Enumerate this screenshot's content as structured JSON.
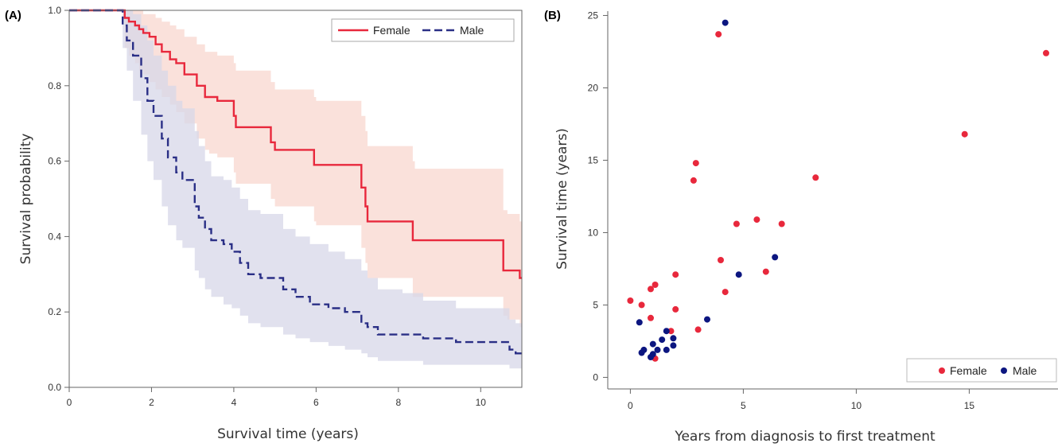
{
  "panelA": {
    "label": "(A)",
    "chart_data": {
      "type": "line",
      "xlabel": "Survival time (years)",
      "ylabel": "Survival probability",
      "xlim": [
        0,
        11
      ],
      "ylim": [
        0,
        1
      ],
      "xticks": [
        0,
        2,
        4,
        6,
        8,
        10
      ],
      "yticks": [
        0.0,
        0.2,
        0.4,
        0.6,
        0.8,
        1.0
      ],
      "ytick_labels": [
        "0.0",
        "0.2",
        "0.4",
        "0.6",
        "0.8",
        "1.0"
      ],
      "legend_position": "top-right",
      "series": [
        {
          "name": "Female",
          "color": "#e8283c",
          "band_color": "#f8d7cf",
          "line_style": "solid",
          "x": [
            0,
            1.35,
            1.45,
            1.6,
            1.7,
            1.8,
            1.95,
            2.1,
            2.25,
            2.45,
            2.6,
            2.8,
            3.1,
            3.3,
            3.4,
            3.6,
            4.0,
            4.05,
            4.9,
            5.0,
            5.95,
            6.0,
            7.1,
            7.2,
            7.25,
            7.4,
            8.35,
            8.4,
            10.55,
            10.65,
            10.95
          ],
          "y": [
            1.0,
            0.98,
            0.97,
            0.96,
            0.95,
            0.94,
            0.93,
            0.91,
            0.89,
            0.87,
            0.86,
            0.83,
            0.8,
            0.77,
            0.77,
            0.76,
            0.72,
            0.69,
            0.65,
            0.63,
            0.59,
            0.59,
            0.53,
            0.48,
            0.44,
            0.44,
            0.39,
            0.39,
            0.31,
            0.31,
            0.29
          ],
          "upper": [
            1.0,
            1.0,
            1.0,
            1.0,
            1.0,
            0.99,
            0.99,
            0.98,
            0.97,
            0.96,
            0.95,
            0.93,
            0.91,
            0.89,
            0.89,
            0.88,
            0.86,
            0.84,
            0.81,
            0.79,
            0.77,
            0.76,
            0.72,
            0.68,
            0.64,
            0.64,
            0.6,
            0.58,
            0.47,
            0.46,
            0.44
          ],
          "lower": [
            1.0,
            0.9,
            0.88,
            0.86,
            0.84,
            0.83,
            0.81,
            0.79,
            0.77,
            0.75,
            0.73,
            0.7,
            0.66,
            0.63,
            0.62,
            0.61,
            0.57,
            0.54,
            0.5,
            0.48,
            0.44,
            0.43,
            0.37,
            0.33,
            0.29,
            0.29,
            0.24,
            0.24,
            0.19,
            0.18,
            0.16
          ]
        },
        {
          "name": "Male",
          "color": "#2a2f86",
          "band_color": "#d7d7e8",
          "line_style": "dashed",
          "x": [
            0,
            1.3,
            1.4,
            1.55,
            1.75,
            1.9,
            2.05,
            2.25,
            2.4,
            2.6,
            2.75,
            3.05,
            3.15,
            3.3,
            3.45,
            3.75,
            3.95,
            4.15,
            4.35,
            4.65,
            5.2,
            5.5,
            5.85,
            6.3,
            6.7,
            7.1,
            7.25,
            7.5,
            8.1,
            8.6,
            9.4,
            10.7,
            10.85
          ],
          "y": [
            1.0,
            0.96,
            0.92,
            0.88,
            0.82,
            0.76,
            0.72,
            0.66,
            0.61,
            0.57,
            0.55,
            0.48,
            0.45,
            0.42,
            0.39,
            0.38,
            0.36,
            0.33,
            0.3,
            0.29,
            0.26,
            0.24,
            0.22,
            0.21,
            0.2,
            0.17,
            0.16,
            0.14,
            0.14,
            0.13,
            0.12,
            0.1,
            0.09
          ],
          "upper": [
            1.0,
            1.0,
            1.0,
            0.99,
            0.96,
            0.92,
            0.88,
            0.84,
            0.8,
            0.76,
            0.74,
            0.68,
            0.64,
            0.6,
            0.56,
            0.55,
            0.53,
            0.5,
            0.47,
            0.46,
            0.42,
            0.4,
            0.38,
            0.36,
            0.34,
            0.31,
            0.29,
            0.26,
            0.25,
            0.23,
            0.21,
            0.18,
            0.17
          ],
          "lower": [
            1.0,
            0.9,
            0.84,
            0.76,
            0.67,
            0.6,
            0.55,
            0.48,
            0.43,
            0.39,
            0.37,
            0.31,
            0.29,
            0.26,
            0.24,
            0.22,
            0.21,
            0.19,
            0.17,
            0.16,
            0.14,
            0.13,
            0.12,
            0.11,
            0.1,
            0.09,
            0.08,
            0.07,
            0.07,
            0.06,
            0.06,
            0.05,
            0.05
          ]
        }
      ]
    }
  },
  "panelB": {
    "label": "(B)",
    "chart_data": {
      "type": "scatter",
      "xlabel": "Years from diagnosis to first treatment",
      "ylabel": "Survival time (years)",
      "xlim": [
        -1,
        19
      ],
      "ylim": [
        -0.8,
        25.3
      ],
      "xticks": [
        0,
        5,
        10,
        15
      ],
      "yticks": [
        0,
        5,
        10,
        15,
        20,
        25
      ],
      "legend_position": "bottom-right",
      "series": [
        {
          "name": "Female",
          "color": "#e8283c",
          "points": [
            [
              0,
              5.3
            ],
            [
              0.5,
              5.0
            ],
            [
              0.9,
              6.1
            ],
            [
              1.1,
              6.4
            ],
            [
              0.9,
              4.1
            ],
            [
              2.0,
              7.1
            ],
            [
              2.0,
              4.7
            ],
            [
              1.8,
              3.2
            ],
            [
              1.1,
              1.3
            ],
            [
              2.8,
              13.6
            ],
            [
              2.9,
              14.8
            ],
            [
              3.9,
              23.7
            ],
            [
              3.0,
              3.3
            ],
            [
              4.0,
              8.1
            ],
            [
              4.2,
              5.9
            ],
            [
              4.7,
              10.6
            ],
            [
              5.6,
              10.9
            ],
            [
              6.0,
              7.3
            ],
            [
              6.7,
              10.6
            ],
            [
              8.2,
              13.8
            ],
            [
              14.8,
              16.8
            ],
            [
              18.4,
              22.4
            ]
          ]
        },
        {
          "name": "Male",
          "color": "#0c1680",
          "points": [
            [
              4.2,
              24.5
            ],
            [
              0.4,
              3.8
            ],
            [
              0.5,
              1.7
            ],
            [
              0.6,
              1.9
            ],
            [
              0.9,
              1.4
            ],
            [
              1.0,
              2.3
            ],
            [
              1.0,
              1.6
            ],
            [
              1.2,
              1.9
            ],
            [
              1.4,
              2.6
            ],
            [
              1.6,
              1.9
            ],
            [
              1.6,
              3.2
            ],
            [
              1.9,
              2.2
            ],
            [
              1.9,
              2.7
            ],
            [
              3.4,
              4.0
            ],
            [
              4.8,
              7.1
            ],
            [
              6.4,
              8.3
            ]
          ]
        }
      ]
    }
  }
}
